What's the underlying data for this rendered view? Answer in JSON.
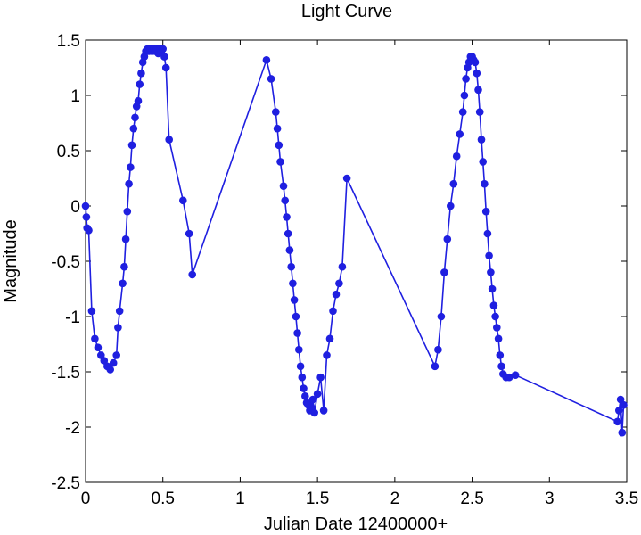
{
  "chart_data": {
    "type": "line",
    "title": "Light Curve",
    "xlabel": "Julian Date 12400000+",
    "ylabel": "Magnitude",
    "xlim": [
      0,
      3.5
    ],
    "ylim": [
      -2.5,
      1.5
    ],
    "x_ticks": [
      "0",
      "0.5",
      "1",
      "1.5",
      "2",
      "2.5",
      "3",
      "3.5"
    ],
    "y_ticks": [
      "1.5",
      "1",
      "0.5",
      "0",
      "-0.5",
      "-1",
      "-1.5",
      "-2",
      "-2.5"
    ],
    "grid": false,
    "legend": "none",
    "series_color": "#1f1fe0",
    "series": [
      {
        "x": [
          0.0,
          0.005,
          0.01,
          0.02,
          0.04,
          0.06,
          0.08,
          0.1,
          0.12,
          0.14,
          0.16,
          0.18,
          0.2,
          0.21,
          0.22,
          0.24,
          0.25,
          0.26,
          0.27,
          0.28,
          0.29,
          0.3,
          0.31,
          0.32,
          0.33,
          0.34,
          0.35,
          0.36,
          0.37,
          0.38,
          0.39,
          0.4,
          0.41,
          0.42,
          0.43,
          0.44,
          0.45,
          0.46,
          0.47,
          0.48,
          0.49,
          0.5,
          0.51,
          0.52,
          0.54,
          0.63,
          0.67,
          0.69,
          1.17,
          1.2,
          1.23,
          1.24,
          1.25,
          1.26,
          1.28,
          1.29,
          1.3,
          1.31,
          1.32,
          1.33,
          1.34,
          1.35,
          1.36,
          1.37,
          1.38,
          1.39,
          1.4,
          1.41,
          1.42,
          1.43,
          1.44,
          1.45,
          1.46,
          1.47,
          1.48,
          1.5,
          1.52,
          1.54,
          1.56,
          1.58,
          1.6,
          1.62,
          1.64,
          1.66,
          1.69,
          2.26,
          2.28,
          2.3,
          2.32,
          2.34,
          2.36,
          2.38,
          2.4,
          2.42,
          2.44,
          2.45,
          2.46,
          2.47,
          2.48,
          2.49,
          2.5,
          2.51,
          2.52,
          2.53,
          2.54,
          2.55,
          2.56,
          2.57,
          2.58,
          2.59,
          2.6,
          2.61,
          2.62,
          2.63,
          2.64,
          2.65,
          2.66,
          2.67,
          2.68,
          2.69,
          2.7,
          2.72,
          2.74,
          2.78,
          3.44,
          3.45,
          3.46,
          3.47,
          3.48
        ],
        "y": [
          0.0,
          -0.1,
          -0.2,
          -0.22,
          -0.95,
          -1.2,
          -1.28,
          -1.35,
          -1.4,
          -1.45,
          -1.48,
          -1.42,
          -1.35,
          -1.1,
          -0.95,
          -0.7,
          -0.55,
          -0.3,
          -0.05,
          0.2,
          0.35,
          0.55,
          0.7,
          0.8,
          0.9,
          0.95,
          1.1,
          1.2,
          1.3,
          1.35,
          1.4,
          1.42,
          1.4,
          1.42,
          1.4,
          1.42,
          1.4,
          1.42,
          1.38,
          1.42,
          1.4,
          1.42,
          1.35,
          1.25,
          0.6,
          0.05,
          -0.25,
          -0.62,
          1.32,
          1.15,
          0.85,
          0.7,
          0.55,
          0.4,
          0.18,
          0.05,
          -0.1,
          -0.25,
          -0.4,
          -0.55,
          -0.7,
          -0.85,
          -1.0,
          -1.15,
          -1.3,
          -1.45,
          -1.55,
          -1.65,
          -1.72,
          -1.78,
          -1.8,
          -1.85,
          -1.82,
          -1.75,
          -1.87,
          -1.7,
          -1.55,
          -1.85,
          -1.35,
          -1.2,
          -0.95,
          -0.8,
          -0.7,
          -0.55,
          0.25,
          -1.45,
          -1.3,
          -1.0,
          -0.6,
          -0.3,
          0.0,
          0.2,
          0.45,
          0.65,
          0.85,
          1.0,
          1.15,
          1.25,
          1.3,
          1.35,
          1.35,
          1.32,
          1.3,
          1.2,
          1.05,
          0.85,
          0.6,
          0.4,
          0.2,
          -0.05,
          -0.25,
          -0.45,
          -0.6,
          -0.75,
          -0.9,
          -1.0,
          -1.1,
          -1.2,
          -1.35,
          -1.45,
          -1.52,
          -1.55,
          -1.55,
          -1.53,
          -1.95,
          -1.85,
          -1.75,
          -2.05,
          -1.8
        ]
      }
    ]
  }
}
